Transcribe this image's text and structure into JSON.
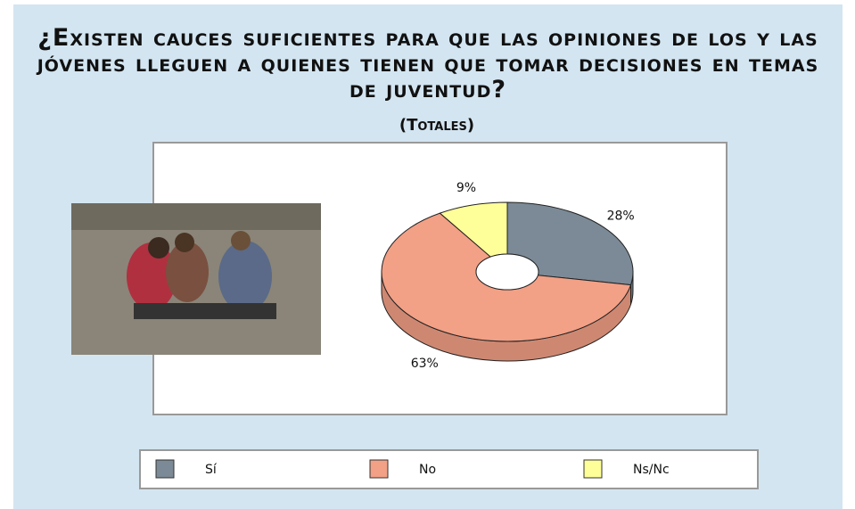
{
  "chart_data": {
    "type": "pie",
    "title": "¿Existen cauces suficientes para que las opiniones de los y las jóvenes lleguen a quienes tienen que tomar decisiones en temas de juventud?",
    "subtitle": "(Totales)",
    "categories": [
      "Sí",
      "No",
      "Ns/Nc"
    ],
    "values": [
      28,
      63,
      9
    ],
    "value_labels": [
      "28%",
      "63%",
      "9%"
    ],
    "colors": [
      "#7b8a96",
      "#f2a086",
      "#ffff99"
    ]
  }
}
